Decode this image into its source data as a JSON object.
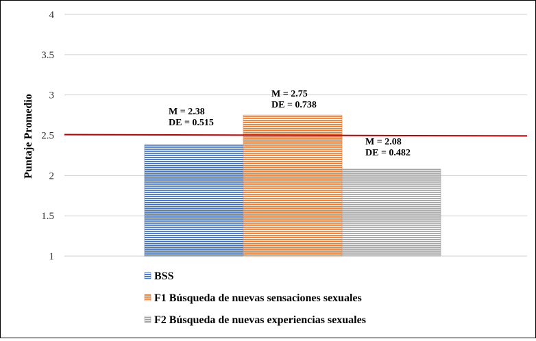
{
  "chart_data": {
    "type": "bar",
    "ylabel": "Puntaje Promedio",
    "ylim": [
      1,
      4
    ],
    "yticks": [
      "1",
      "1.5",
      "2",
      "2.5",
      "3",
      "3.5",
      "4"
    ],
    "grid": true,
    "legend_position": "bottom-left",
    "reference_line": {
      "value": 2.5,
      "color": "#c00000"
    },
    "series": [
      {
        "name": "BSS",
        "value": 2.38,
        "color": "#4472c4",
        "annotation": [
          "M = 2.38",
          "DE = 0.515"
        ]
      },
      {
        "name": "F1 Búsqueda de nuevas sensaciones sexuales",
        "value": 2.75,
        "color": "#ed7d31",
        "annotation": [
          "M = 2.75",
          "DE = 0.738"
        ]
      },
      {
        "name": "F2 Búsqueda de nuevas experiencias sexuales",
        "value": 2.08,
        "color": "#a5a5a5",
        "annotation": [
          "M = 2.08",
          "DE = 0.482"
        ]
      }
    ]
  }
}
